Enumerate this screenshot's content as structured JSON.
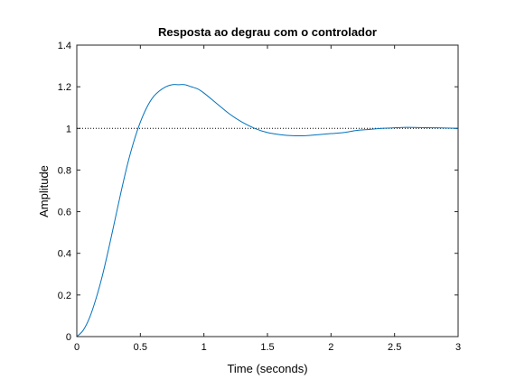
{
  "chart_data": {
    "type": "line",
    "title": "Resposta ao degrau com o controlador",
    "xlabel": "Time (seconds)",
    "ylabel": "Amplitude",
    "xlim": [
      0,
      3
    ],
    "ylim": [
      0,
      1.4
    ],
    "xticks": [
      0,
      0.5,
      1,
      1.5,
      2,
      2.5,
      3
    ],
    "xtick_labels": [
      "0",
      "0.5",
      "1",
      "1.5",
      "2",
      "2.5",
      "3"
    ],
    "yticks": [
      0,
      0.2,
      0.4,
      0.6,
      0.8,
      1.0,
      1.2,
      1.4
    ],
    "ytick_labels": [
      "0",
      "0.2",
      "0.4",
      "0.6",
      "0.8",
      "1",
      "1.2",
      "1.4"
    ],
    "grid": false,
    "series": [
      {
        "color": "#0072bd",
        "x": [
          0,
          0.05,
          0.1,
          0.15,
          0.2,
          0.25,
          0.3,
          0.35,
          0.4,
          0.45,
          0.5,
          0.55,
          0.6,
          0.65,
          0.7,
          0.75,
          0.8,
          0.85,
          0.9,
          0.95,
          1.0,
          1.1,
          1.2,
          1.3,
          1.4,
          1.5,
          1.6,
          1.7,
          1.8,
          1.9,
          2.0,
          2.1,
          2.2,
          2.3,
          2.4,
          2.5,
          2.6,
          2.7,
          2.8,
          2.9,
          3.0
        ],
        "y": [
          0,
          0.03,
          0.09,
          0.18,
          0.29,
          0.42,
          0.56,
          0.7,
          0.83,
          0.94,
          1.03,
          1.1,
          1.15,
          1.18,
          1.2,
          1.21,
          1.21,
          1.21,
          1.2,
          1.19,
          1.17,
          1.12,
          1.07,
          1.03,
          1.0,
          0.98,
          0.97,
          0.965,
          0.965,
          0.97,
          0.975,
          0.98,
          0.99,
          0.995,
          1.0,
          1.003,
          1.005,
          1.004,
          1.003,
          1.002,
          1.0
        ]
      }
    ],
    "reference_line": {
      "y": 1.0,
      "style": "dotted",
      "color": "#000000"
    }
  }
}
